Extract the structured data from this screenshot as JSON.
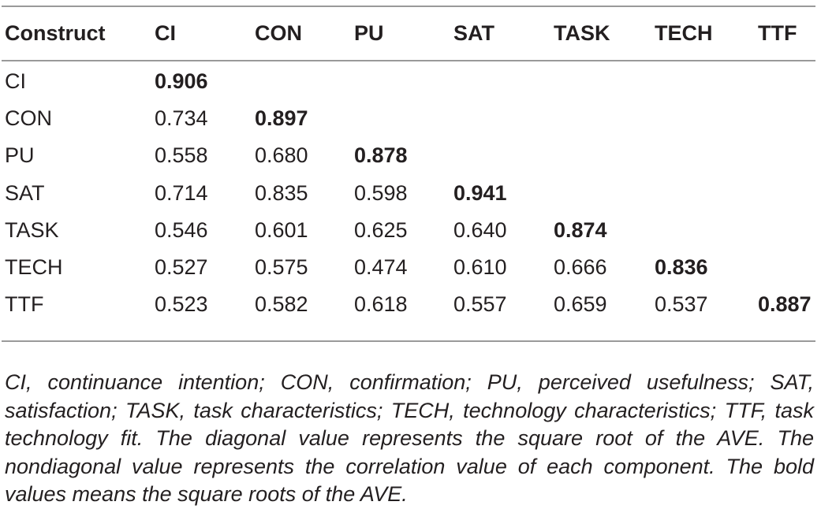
{
  "table": {
    "headers": [
      "Construct",
      "CI",
      "CON",
      "PU",
      "SAT",
      "TASK",
      "TECH",
      "TTF"
    ],
    "rows": [
      {
        "construct": "CI",
        "values": [
          "0.906",
          "",
          "",
          "",
          "",
          "",
          ""
        ]
      },
      {
        "construct": "CON",
        "values": [
          "0.734",
          "0.897",
          "",
          "",
          "",
          "",
          ""
        ]
      },
      {
        "construct": "PU",
        "values": [
          "0.558",
          "0.680",
          "0.878",
          "",
          "",
          "",
          ""
        ]
      },
      {
        "construct": "SAT",
        "values": [
          "0.714",
          "0.835",
          "0.598",
          "0.941",
          "",
          "",
          ""
        ]
      },
      {
        "construct": "TASK",
        "values": [
          "0.546",
          "0.601",
          "0.625",
          "0.640",
          "0.874",
          "",
          ""
        ]
      },
      {
        "construct": "TECH",
        "values": [
          "0.527",
          "0.575",
          "0.474",
          "0.610",
          "0.666",
          "0.836",
          ""
        ]
      },
      {
        "construct": "TTF",
        "values": [
          "0.523",
          "0.582",
          "0.618",
          "0.557",
          "0.659",
          "0.537",
          "0.887"
        ]
      }
    ]
  },
  "footnote": "CI, continuance intention; CON, confirmation; PU, perceived usefulness; SAT, satisfaction; TASK, task characteristics; TECH, technology characteristics; TTF, task technology fit. The diagonal value represents the square root of the AVE. The nondiagonal value represents the correlation value of each component. The bold values means the square roots of the AVE."
}
